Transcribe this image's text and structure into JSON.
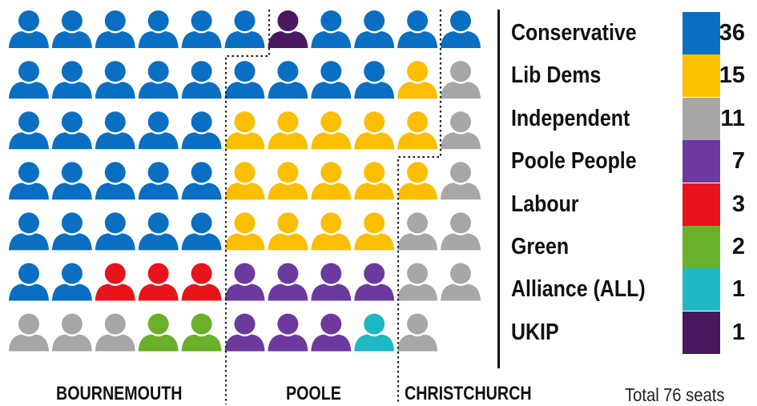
{
  "colors": {
    "conservative": "#0a6fc2",
    "lib_dems": "#fbbe00",
    "independent": "#a7a7a7",
    "poole_people": "#6c3a9e",
    "labour": "#e8141c",
    "green": "#6ab02a",
    "alliance": "#1eb8c3",
    "ukip": "#4a1860"
  },
  "chart_data": {
    "type": "table",
    "title": "",
    "areas": [
      "BOURNEMOUTH",
      "POOLE",
      "CHRISTCHURCH"
    ],
    "parties": [
      {
        "name": "Conservative",
        "seats": 36,
        "key": "conservative"
      },
      {
        "name": "Lib Dems",
        "seats": 15,
        "key": "lib_dems"
      },
      {
        "name": "Independent",
        "seats": 11,
        "key": "independent"
      },
      {
        "name": "Poole People",
        "seats": 7,
        "key": "poole_people"
      },
      {
        "name": "Labour",
        "seats": 3,
        "key": "labour"
      },
      {
        "name": "Green",
        "seats": 2,
        "key": "green"
      },
      {
        "name": "Alliance (ALL)",
        "seats": 1,
        "key": "alliance"
      },
      {
        "name": "UKIP",
        "seats": 1,
        "key": "ukip"
      }
    ],
    "seat_grid": [
      [
        "conservative",
        "conservative",
        "conservative",
        "conservative",
        "conservative",
        "conservative",
        "ukip",
        "conservative",
        "conservative",
        "conservative",
        "conservative"
      ],
      [
        "conservative",
        "conservative",
        "conservative",
        "conservative",
        "conservative",
        "conservative",
        "conservative",
        "conservative",
        "conservative",
        "lib_dems",
        "independent"
      ],
      [
        "conservative",
        "conservative",
        "conservative",
        "conservative",
        "conservative",
        "lib_dems",
        "lib_dems",
        "lib_dems",
        "lib_dems",
        "lib_dems",
        "independent"
      ],
      [
        "conservative",
        "conservative",
        "conservative",
        "conservative",
        "conservative",
        "lib_dems",
        "lib_dems",
        "lib_dems",
        "lib_dems",
        "lib_dems",
        "independent"
      ],
      [
        "conservative",
        "conservative",
        "conservative",
        "conservative",
        "conservative",
        "lib_dems",
        "lib_dems",
        "lib_dems",
        "lib_dems",
        "independent",
        "independent"
      ],
      [
        "conservative",
        "conservative",
        "labour",
        "labour",
        "labour",
        "poole_people",
        "poole_people",
        "poole_people",
        "poole_people",
        "independent",
        "independent"
      ],
      [
        "independent",
        "independent",
        "independent",
        "green",
        "green",
        "poole_people",
        "poole_people",
        "poole_people",
        "alliance",
        "independent",
        null
      ]
    ],
    "total_label": "Total",
    "total_seats": "76 seats"
  }
}
